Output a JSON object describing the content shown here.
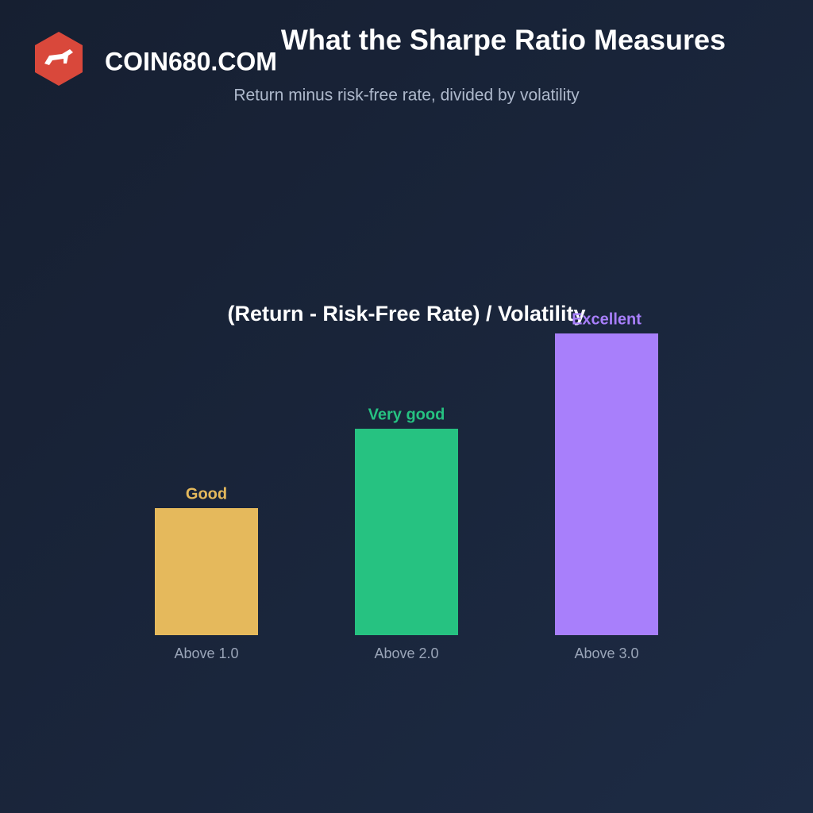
{
  "chart_data": {
    "type": "bar",
    "title": "What the Sharpe Ratio Measures",
    "subtitle": "Return minus risk-free rate, divided by volatility",
    "annotation": "(Return - Risk-Free Rate) / Volatility",
    "watermark": "COIN680.COM",
    "categories": [
      "Above 1.0",
      "Above 2.0",
      "Above 3.0"
    ],
    "values": [
      1.6,
      2.6,
      3.8
    ],
    "bar_labels": [
      "Good",
      "Very good",
      "Excellent"
    ],
    "colors": [
      "#e5b95c",
      "#26c281",
      "#a87ffb"
    ]
  }
}
